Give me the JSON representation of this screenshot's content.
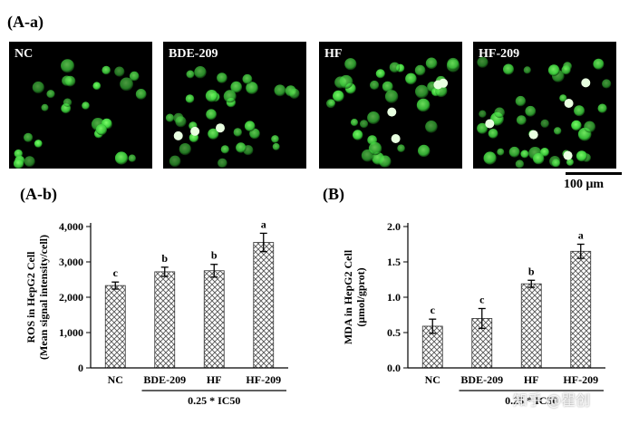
{
  "figure": {
    "panel_a_a": "(A-a)",
    "panel_a_b": "(A-b)",
    "panel_b": "(B)",
    "scale_label": "100 μm",
    "watermark": "知乎 @瞿创"
  },
  "micrographs": [
    {
      "label": "NC"
    },
    {
      "label": "BDE-209"
    },
    {
      "label": "HF"
    },
    {
      "label": "HF-209"
    }
  ],
  "colors": {
    "cell": "#3ccf3c",
    "bright_cell": "#e8ffe0",
    "bar_hatch": "#555555"
  },
  "chart_data": [
    {
      "type": "bar",
      "categories": [
        "NC",
        "BDE-209",
        "HF",
        "HF-209"
      ],
      "values": [
        2330,
        2720,
        2750,
        3550
      ],
      "errors": [
        100,
        130,
        180,
        260
      ],
      "letters": [
        "c",
        "b",
        "b",
        "a"
      ],
      "ylabel": "ROS in HepG2 Cell",
      "ylabel2": "(Mean signal intensity/cell)",
      "ylim": [
        0,
        4000
      ],
      "yticks": [
        "0",
        "1,000",
        "2,000",
        "3,000",
        "4,000"
      ],
      "ytick_values": [
        0,
        1000,
        2000,
        3000,
        4000
      ],
      "group_label": "0.25 * IC50"
    },
    {
      "type": "bar",
      "categories": [
        "NC",
        "BDE-209",
        "HF",
        "HF-209"
      ],
      "values": [
        0.59,
        0.7,
        1.19,
        1.65
      ],
      "errors": [
        0.1,
        0.14,
        0.05,
        0.1
      ],
      "letters": [
        "c",
        "c",
        "b",
        "a"
      ],
      "ylabel": "MDA in HepG2 Cell",
      "ylabel2": "(μmol/gprot)",
      "ylim": [
        0,
        2.0
      ],
      "yticks": [
        "0.0",
        "0.5",
        "1.0",
        "1.5",
        "2.0"
      ],
      "ytick_values": [
        0,
        0.5,
        1.0,
        1.5,
        2.0
      ],
      "group_label": "0.25 * IC50"
    }
  ]
}
